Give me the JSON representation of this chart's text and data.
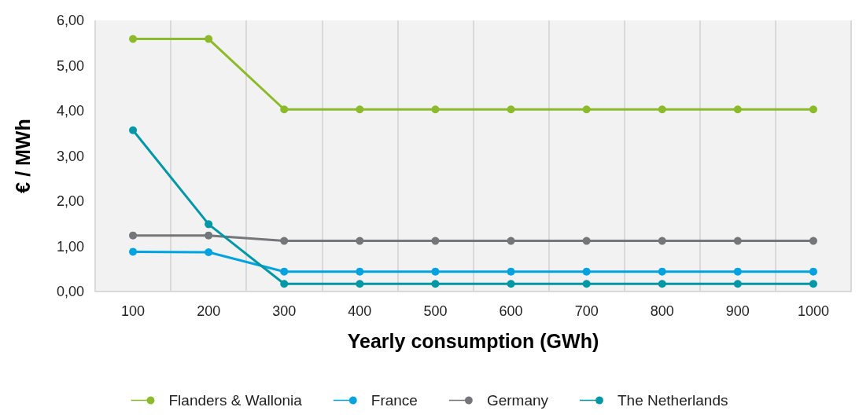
{
  "chart_data": {
    "type": "line",
    "xlabel": "Yearly consumption (GWh)",
    "ylabel": "€ / MWh",
    "categories": [
      "100",
      "200",
      "300",
      "400",
      "500",
      "600",
      "700",
      "800",
      "900",
      "1000"
    ],
    "series": [
      {
        "name": "Flanders & Wallonia",
        "color": "#8bba2a",
        "values": [
          5.59,
          5.59,
          4.03,
          4.03,
          4.03,
          4.03,
          4.03,
          4.03,
          4.03,
          4.03
        ]
      },
      {
        "name": "France",
        "color": "#00a3e0",
        "values": [
          0.88,
          0.87,
          0.44,
          0.44,
          0.44,
          0.44,
          0.44,
          0.44,
          0.44,
          0.44
        ]
      },
      {
        "name": "Germany",
        "color": "#757679",
        "values": [
          1.24,
          1.24,
          1.12,
          1.12,
          1.12,
          1.12,
          1.12,
          1.12,
          1.12,
          1.12
        ]
      },
      {
        "name": "The Netherlands",
        "color": "#0097a7",
        "values": [
          3.57,
          1.49,
          0.17,
          0.17,
          0.17,
          0.17,
          0.17,
          0.17,
          0.17,
          0.17
        ]
      }
    ],
    "ylim": [
      0,
      6
    ],
    "yticks": [
      {
        "value": 0,
        "label": "0,00"
      },
      {
        "value": 1,
        "label": "1,00"
      },
      {
        "value": 2,
        "label": "2,00"
      },
      {
        "value": 3,
        "label": "3,00"
      },
      {
        "value": 4,
        "label": "4,00"
      },
      {
        "value": 5,
        "label": "5,00"
      },
      {
        "value": 6,
        "label": "6,00"
      }
    ],
    "grid": "x",
    "legend": "bottom",
    "marker": "circle",
    "line_style": "solid"
  }
}
